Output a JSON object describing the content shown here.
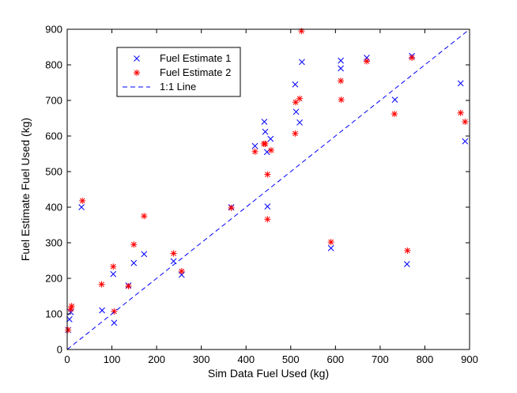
{
  "chart_data": {
    "type": "scatter",
    "title": "",
    "xlabel": "Sim Data Fuel Used (kg)",
    "ylabel": "Fuel Estimate Fuel Used (kg)",
    "xlim": [
      0,
      900
    ],
    "ylim": [
      0,
      900
    ],
    "xticks": [
      0,
      100,
      200,
      300,
      400,
      500,
      600,
      700,
      800,
      900
    ],
    "yticks": [
      0,
      100,
      200,
      300,
      400,
      500,
      600,
      700,
      800,
      900
    ],
    "grid": false,
    "legend_position": "top-left",
    "series": [
      {
        "name": "Fuel Estimate 1",
        "marker": "x",
        "color": "#0000ff",
        "points": [
          [
            2,
            55
          ],
          [
            5,
            85
          ],
          [
            8,
            105
          ],
          [
            32,
            400
          ],
          [
            78,
            110
          ],
          [
            103,
            212
          ],
          [
            105,
            75
          ],
          [
            137,
            180
          ],
          [
            149,
            243
          ],
          [
            172,
            268
          ],
          [
            238,
            248
          ],
          [
            256,
            210
          ],
          [
            367,
            400
          ],
          [
            420,
            572
          ],
          [
            441,
            640
          ],
          [
            443,
            612
          ],
          [
            447,
            555
          ],
          [
            448,
            402
          ],
          [
            455,
            592
          ],
          [
            510,
            745
          ],
          [
            512,
            668
          ],
          [
            520,
            638
          ],
          [
            525,
            808
          ],
          [
            590,
            285
          ],
          [
            612,
            812
          ],
          [
            612,
            790
          ],
          [
            670,
            820
          ],
          [
            733,
            702
          ],
          [
            760,
            240
          ],
          [
            771,
            825
          ],
          [
            880,
            748
          ],
          [
            890,
            585
          ]
        ]
      },
      {
        "name": "Fuel Estimate 2",
        "marker": "*",
        "color": "#ff0000",
        "points": [
          [
            2,
            55
          ],
          [
            8,
            113
          ],
          [
            10,
            122
          ],
          [
            34,
            418
          ],
          [
            77,
            183
          ],
          [
            103,
            233
          ],
          [
            105,
            107
          ],
          [
            137,
            178
          ],
          [
            149,
            295
          ],
          [
            172,
            375
          ],
          [
            238,
            270
          ],
          [
            256,
            220
          ],
          [
            367,
            398
          ],
          [
            420,
            556
          ],
          [
            440,
            578
          ],
          [
            443,
            578
          ],
          [
            448,
            492
          ],
          [
            448,
            366
          ],
          [
            456,
            560
          ],
          [
            510,
            607
          ],
          [
            511,
            695
          ],
          [
            520,
            705
          ],
          [
            524,
            895
          ],
          [
            590,
            302
          ],
          [
            612,
            755
          ],
          [
            613,
            702
          ],
          [
            670,
            810
          ],
          [
            732,
            662
          ],
          [
            761,
            278
          ],
          [
            771,
            820
          ],
          [
            880,
            665
          ],
          [
            890,
            640
          ]
        ]
      },
      {
        "name": "1:1 Line",
        "type": "line",
        "style": "dashed",
        "color": "#0000ff",
        "points": [
          [
            0,
            0
          ],
          [
            900,
            900
          ]
        ]
      }
    ]
  }
}
